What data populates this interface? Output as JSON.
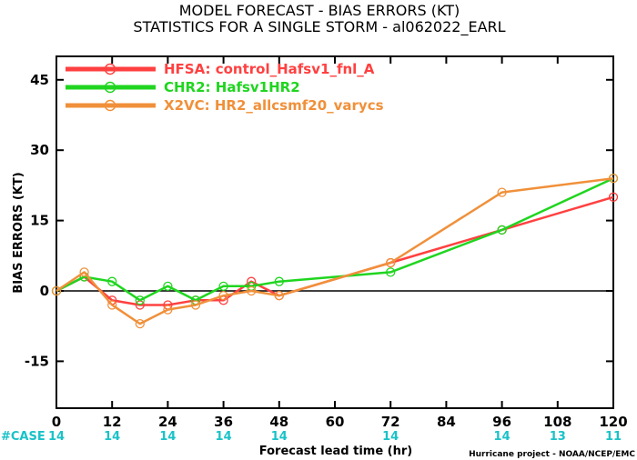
{
  "chart_data": {
    "type": "line",
    "title": "MODEL FORECAST - BIAS ERRORS (KT)",
    "subtitle": "STATISTICS FOR A SINGLE STORM - al062022_EARL",
    "xlabel": "Forecast lead time (hr)",
    "ylabel": "BIAS ERRORS (KT)",
    "xlim": [
      0,
      120
    ],
    "ylim": [
      -25,
      50
    ],
    "xticks": [
      0,
      12,
      24,
      36,
      48,
      60,
      72,
      84,
      96,
      108,
      120
    ],
    "yticks": [
      -15,
      0,
      15,
      30,
      45
    ],
    "grid": false,
    "legend_position": "top-left",
    "case_label": "#CASE",
    "case_counts": [
      {
        "x": 0,
        "n": "14"
      },
      {
        "x": 12,
        "n": "14"
      },
      {
        "x": 24,
        "n": "14"
      },
      {
        "x": 36,
        "n": "14"
      },
      {
        "x": 48,
        "n": "14"
      },
      {
        "x": 72,
        "n": "14"
      },
      {
        "x": 96,
        "n": "14"
      },
      {
        "x": 108,
        "n": "13"
      },
      {
        "x": 120,
        "n": "11"
      }
    ],
    "credit": "Hurricane project - NOAA/NCEP/EMC",
    "series": [
      {
        "name": "HFSA: control_Hafsv1_fnl_A",
        "color": "#ff4040",
        "points": [
          [
            0,
            0
          ],
          [
            6,
            3
          ],
          [
            12,
            -2
          ],
          [
            18,
            -3
          ],
          [
            24,
            -3
          ],
          [
            30,
            -2
          ],
          [
            36,
            -2
          ],
          [
            42,
            2
          ],
          [
            48,
            -1
          ],
          [
            72,
            6
          ],
          [
            96,
            13
          ],
          [
            120,
            20
          ]
        ]
      },
      {
        "name": "CHR2: Hafsv1HR2",
        "color": "#1fd51f",
        "points": [
          [
            0,
            0
          ],
          [
            6,
            3
          ],
          [
            12,
            2
          ],
          [
            18,
            -2
          ],
          [
            24,
            1
          ],
          [
            30,
            -2
          ],
          [
            36,
            1
          ],
          [
            42,
            1
          ],
          [
            48,
            2
          ],
          [
            72,
            4
          ],
          [
            96,
            13
          ],
          [
            120,
            24
          ]
        ]
      },
      {
        "name": "X2VC: HR2_allcsmf20_varycs",
        "color": "#f0903a",
        "points": [
          [
            0,
            0
          ],
          [
            6,
            4
          ],
          [
            12,
            -3
          ],
          [
            18,
            -7
          ],
          [
            24,
            -4
          ],
          [
            30,
            -3
          ],
          [
            36,
            -1
          ],
          [
            42,
            0
          ],
          [
            48,
            -1
          ],
          [
            72,
            6
          ],
          [
            96,
            21
          ],
          [
            120,
            24
          ]
        ]
      }
    ]
  }
}
